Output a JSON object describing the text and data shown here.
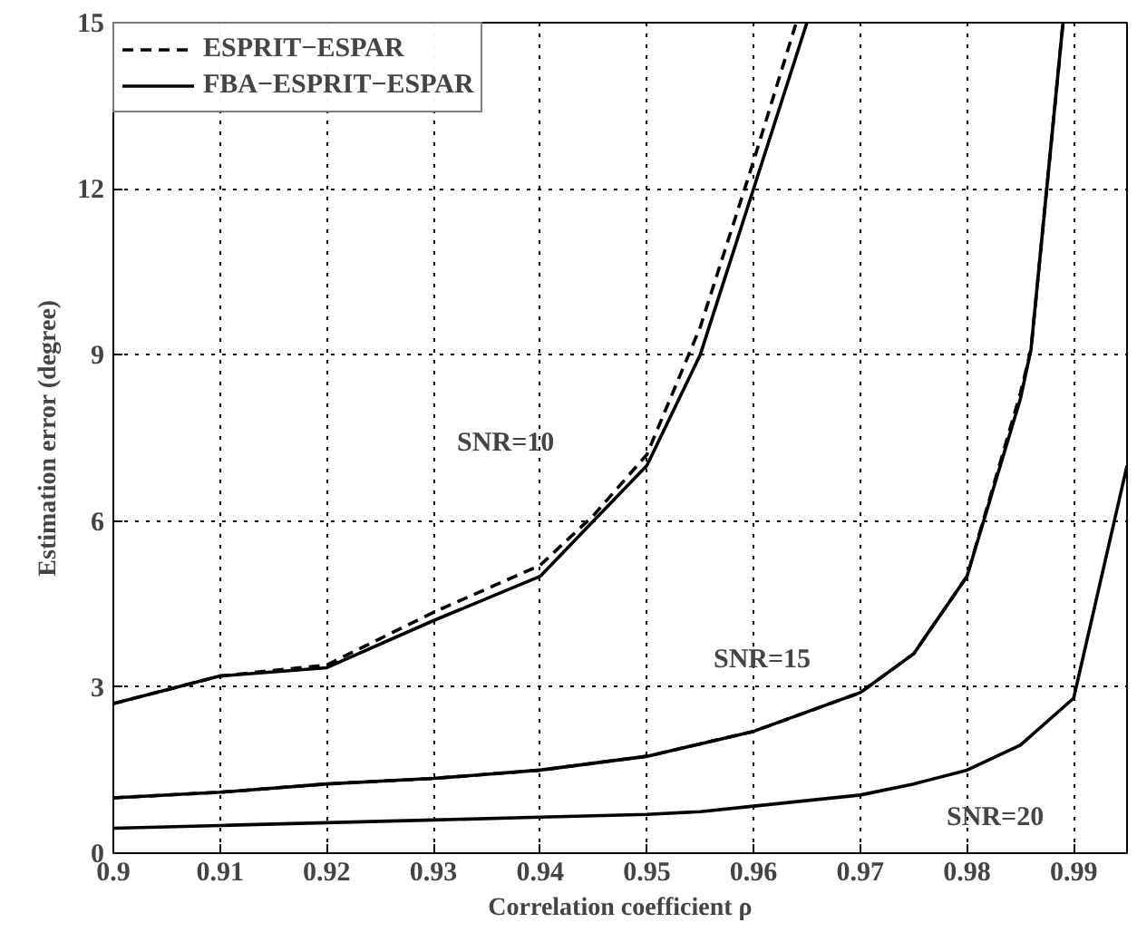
{
  "chart_data": {
    "type": "line",
    "xlabel": "Correlation coefficient ρ",
    "ylabel": "Estimation error (degree)",
    "xlim": [
      0.9,
      0.995
    ],
    "xticks": [
      0.9,
      0.91,
      0.92,
      0.93,
      0.94,
      0.95,
      0.96,
      0.97,
      0.98,
      0.99
    ],
    "ylim": [
      0,
      15
    ],
    "yticks": [
      0,
      3,
      6,
      9,
      12,
      15
    ],
    "grid": true,
    "legend": "top left",
    "marker": "none",
    "series": [
      {
        "name": "ESPRIT−ESPAR",
        "color": "#000000",
        "line_style": "dashed",
        "x": [
          0.9,
          0.91,
          0.92,
          0.93,
          0.94,
          0.945,
          0.95,
          0.955,
          0.96,
          0.964
        ],
        "values": [
          2.7,
          3.2,
          3.4,
          4.35,
          5.2,
          6.1,
          7.2,
          9.5,
          12.5,
          15
        ]
      },
      {
        "name": "FBA−ESPRIT−ESPAR",
        "color": "#000000",
        "line_style": "solid",
        "x": [
          0.9,
          0.91,
          0.92,
          0.93,
          0.94,
          0.945,
          0.95,
          0.955,
          0.96,
          0.965
        ],
        "values": [
          2.7,
          3.2,
          3.35,
          4.2,
          5.0,
          6.0,
          7.0,
          9.0,
          12.0,
          15
        ]
      },
      {
        "color": "#000000",
        "line_style": "dashed",
        "x": [
          0.9,
          0.91,
          0.92,
          0.93,
          0.94,
          0.95,
          0.96,
          0.97,
          0.975,
          0.98,
          0.985,
          0.986,
          0.989
        ],
        "values": [
          1.0,
          1.1,
          1.25,
          1.35,
          1.5,
          1.75,
          2.2,
          2.9,
          3.6,
          5.0,
          8.3,
          9.1,
          15
        ]
      },
      {
        "color": "#000000",
        "line_style": "solid",
        "x": [
          0.9,
          0.91,
          0.92,
          0.93,
          0.94,
          0.95,
          0.96,
          0.97,
          0.975,
          0.98,
          0.985,
          0.986,
          0.989
        ],
        "values": [
          1.0,
          1.1,
          1.25,
          1.35,
          1.5,
          1.75,
          2.2,
          2.9,
          3.6,
          5.0,
          8.2,
          9.1,
          15
        ]
      },
      {
        "color": "#000000",
        "line_style": "solid",
        "x": [
          0.9,
          0.91,
          0.92,
          0.93,
          0.94,
          0.95,
          0.955,
          0.96,
          0.97,
          0.975,
          0.98,
          0.985,
          0.99,
          0.995
        ],
        "values": [
          0.45,
          0.5,
          0.55,
          0.6,
          0.65,
          0.7,
          0.75,
          0.85,
          1.05,
          1.25,
          1.5,
          1.95,
          2.8,
          7.0
        ]
      }
    ],
    "annotations": [
      "SNR=10",
      "SNR=15",
      "SNR=20"
    ]
  }
}
